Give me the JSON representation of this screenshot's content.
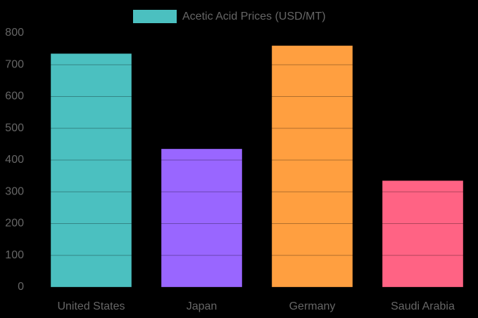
{
  "chart_data": {
    "type": "bar",
    "categories": [
      "United States",
      "Japan",
      "Germany",
      "Saudi Arabia"
    ],
    "series": [
      {
        "name": "Acetic Acid Prices (USD/MT)",
        "colors": [
          "#4bc0c0",
          "#9966ff",
          "#ff9f40",
          "#ff6384"
        ],
        "values": [
          735,
          435,
          760,
          335
        ]
      }
    ],
    "ylim": [
      0,
      800
    ],
    "yticks": [
      0,
      100,
      200,
      300,
      400,
      500,
      600,
      700,
      800
    ],
    "grid": true,
    "legend": "top"
  }
}
